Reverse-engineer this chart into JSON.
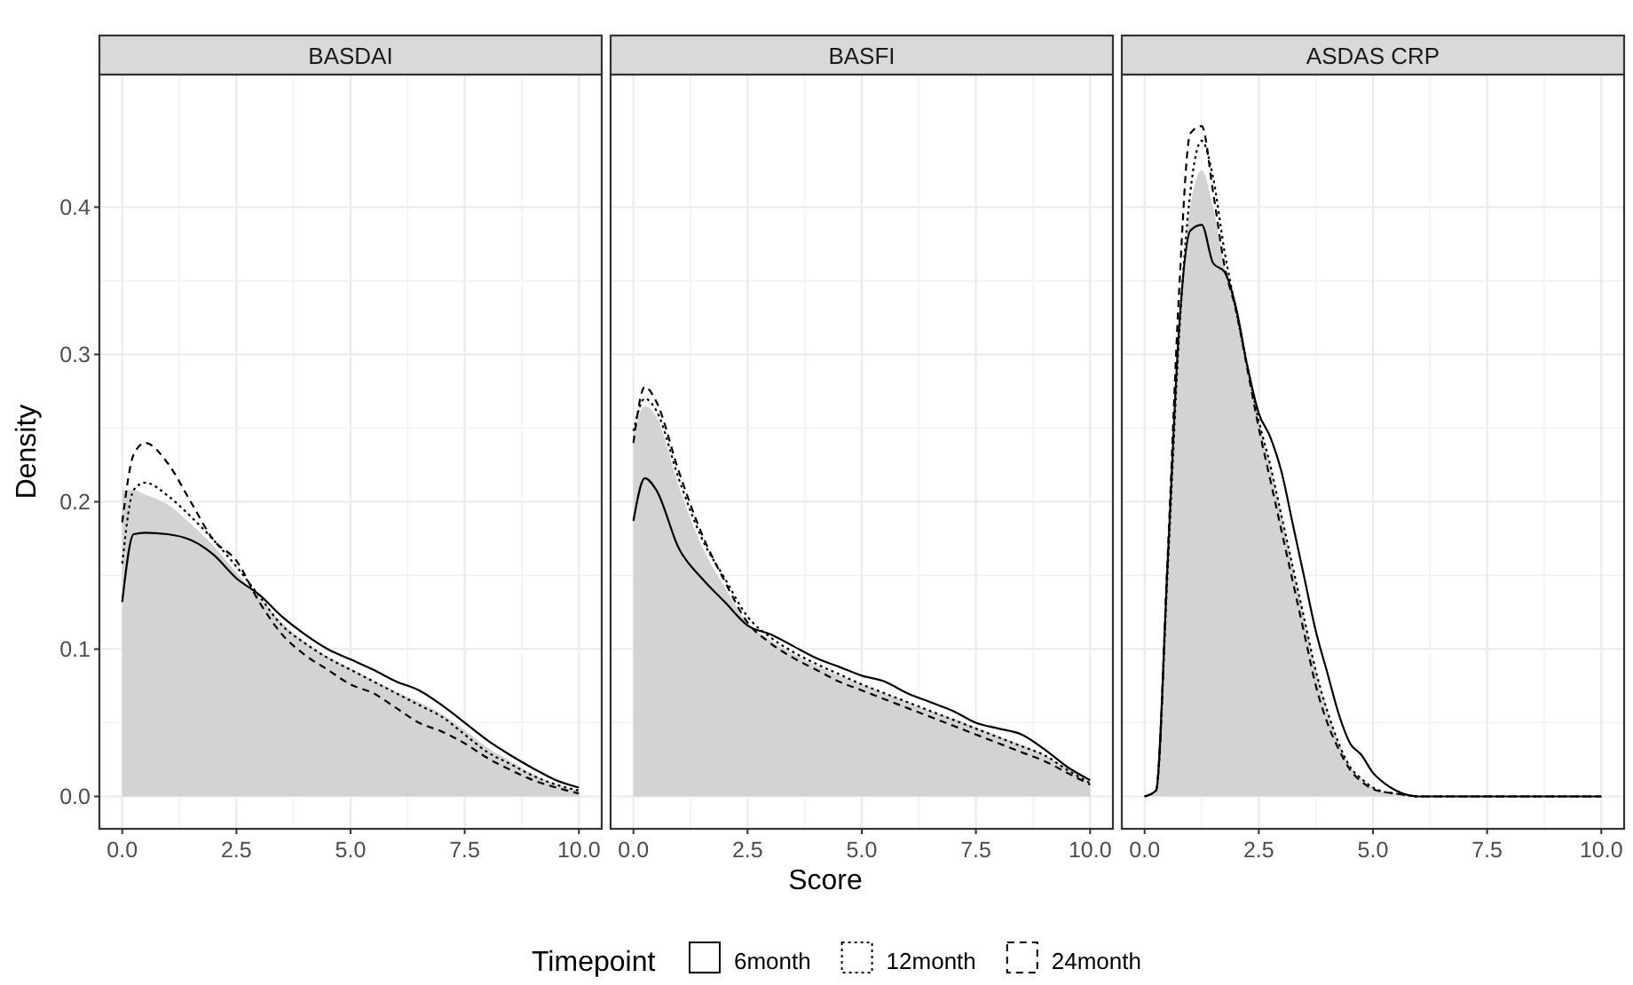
{
  "chart_data": [
    {
      "type": "line",
      "title": "BASDAI",
      "ylabel": "Density",
      "xlim": [
        -0.5,
        10.5
      ],
      "ylim": [
        -0.022,
        0.49
      ],
      "xticks": [
        {
          "value": 0,
          "label": "0.0"
        },
        {
          "value": 2.5,
          "label": "2.5"
        },
        {
          "value": 5,
          "label": "5.0"
        },
        {
          "value": 7.5,
          "label": "7.5"
        },
        {
          "value": 10,
          "label": "10.0"
        }
      ],
      "yticks": [
        {
          "value": 0,
          "label": "0.0"
        },
        {
          "value": 0.1,
          "label": "0.1"
        },
        {
          "value": 0.2,
          "label": "0.2"
        },
        {
          "value": 0.3,
          "label": "0.3"
        },
        {
          "value": 0.4,
          "label": "0.4"
        }
      ],
      "grid": true,
      "x": [
        0,
        0.25,
        0.5,
        1,
        1.5,
        2,
        2.5,
        3,
        3.5,
        4,
        4.5,
        5,
        5.5,
        6,
        6.5,
        7,
        7.5,
        8,
        8.5,
        9,
        9.5,
        10
      ],
      "series": [
        {
          "type": "area",
          "color": "#d3d3d3",
          "values": [
            0.208,
            0.208,
            0.205,
            0.198,
            0.185,
            0.17,
            0.152,
            0.135,
            0.118,
            0.105,
            0.095,
            0.087,
            0.079,
            0.071,
            0.064,
            0.056,
            0.045,
            0.033,
            0.024,
            0.015,
            0.008,
            0.004
          ]
        },
        {
          "color": "#000000",
          "line_style": "solid",
          "values": [
            0.132,
            0.178,
            0.179,
            0.178,
            0.174,
            0.164,
            0.148,
            0.137,
            0.122,
            0.11,
            0.1,
            0.093,
            0.086,
            0.078,
            0.072,
            0.062,
            0.05,
            0.038,
            0.028,
            0.019,
            0.011,
            0.006
          ]
        },
        {
          "color": "#000000",
          "line_style": "dotted",
          "values": [
            0.158,
            0.208,
            0.213,
            0.204,
            0.19,
            0.174,
            0.156,
            0.136,
            0.116,
            0.104,
            0.094,
            0.086,
            0.078,
            0.07,
            0.062,
            0.054,
            0.042,
            0.03,
            0.022,
            0.014,
            0.008,
            0.004
          ]
        },
        {
          "color": "#000000",
          "line_style": "dashed",
          "values": [
            0.186,
            0.232,
            0.24,
            0.226,
            0.2,
            0.174,
            0.16,
            0.132,
            0.11,
            0.096,
            0.086,
            0.076,
            0.07,
            0.06,
            0.05,
            0.044,
            0.036,
            0.026,
            0.018,
            0.011,
            0.006,
            0.002
          ]
        }
      ],
      "tick_labels": true
    },
    {
      "type": "line",
      "title": "BASFI",
      "xlabel": "Score",
      "legend": "bottom",
      "legend_title": "Timepoint",
      "xlim": [
        -0.5,
        10.5
      ],
      "ylim": [
        -0.022,
        0.49
      ],
      "xticks": [
        {
          "value": 0,
          "label": "0.0"
        },
        {
          "value": 2.5,
          "label": "2.5"
        },
        {
          "value": 5,
          "label": "5.0"
        },
        {
          "value": 7.5,
          "label": "7.5"
        },
        {
          "value": 10,
          "label": "10.0"
        }
      ],
      "yticks": [
        {
          "value": 0,
          "label": null
        },
        {
          "value": 0.1,
          "label": null
        },
        {
          "value": 0.2,
          "label": null
        },
        {
          "value": 0.3,
          "label": null
        },
        {
          "value": 0.4,
          "label": null
        }
      ],
      "grid": true,
      "tick_labels": "x",
      "x": [
        0,
        0.25,
        0.5,
        1,
        1.5,
        2,
        2.5,
        3,
        3.5,
        4,
        4.5,
        5,
        5.5,
        6,
        6.5,
        7,
        7.5,
        8,
        8.5,
        9,
        9.5,
        10
      ],
      "series": [
        {
          "type": "area",
          "color": "#d3d3d3",
          "values": [
            0.245,
            0.265,
            0.258,
            0.21,
            0.17,
            0.142,
            0.118,
            0.106,
            0.097,
            0.089,
            0.082,
            0.076,
            0.07,
            0.064,
            0.058,
            0.053,
            0.047,
            0.041,
            0.035,
            0.028,
            0.019,
            0.009
          ]
        },
        {
          "name": "6month",
          "color": "#000000",
          "line_style": "solid",
          "values": [
            0.187,
            0.216,
            0.208,
            0.168,
            0.148,
            0.132,
            0.116,
            0.11,
            0.102,
            0.094,
            0.088,
            0.082,
            0.078,
            0.07,
            0.064,
            0.058,
            0.05,
            0.046,
            0.042,
            0.032,
            0.02,
            0.011
          ]
        },
        {
          "name": "12month",
          "color": "#000000",
          "line_style": "dotted",
          "values": [
            0.248,
            0.27,
            0.262,
            0.215,
            0.175,
            0.148,
            0.122,
            0.108,
            0.098,
            0.09,
            0.083,
            0.076,
            0.07,
            0.064,
            0.058,
            0.052,
            0.046,
            0.04,
            0.034,
            0.028,
            0.018,
            0.009
          ]
        },
        {
          "name": "24month",
          "color": "#000000",
          "line_style": "dashed",
          "values": [
            0.24,
            0.278,
            0.268,
            0.22,
            0.178,
            0.146,
            0.118,
            0.104,
            0.094,
            0.086,
            0.078,
            0.072,
            0.066,
            0.06,
            0.054,
            0.048,
            0.042,
            0.036,
            0.03,
            0.024,
            0.016,
            0.008
          ]
        }
      ]
    },
    {
      "type": "line",
      "title": "ASDAS CRP",
      "xlim": [
        -0.5,
        10.5
      ],
      "ylim": [
        -0.022,
        0.49
      ],
      "xticks": [
        {
          "value": 0,
          "label": "0.0"
        },
        {
          "value": 2.5,
          "label": "2.5"
        },
        {
          "value": 5,
          "label": "5.0"
        },
        {
          "value": 7.5,
          "label": "7.5"
        },
        {
          "value": 10,
          "label": "10.0"
        }
      ],
      "yticks": [
        {
          "value": 0,
          "label": null
        },
        {
          "value": 0.1,
          "label": null
        },
        {
          "value": 0.2,
          "label": null
        },
        {
          "value": 0.3,
          "label": null
        },
        {
          "value": 0.4,
          "label": null
        }
      ],
      "grid": true,
      "tick_labels": "x",
      "x": [
        0,
        0.25,
        0.5,
        0.75,
        1,
        1.25,
        1.5,
        1.75,
        2,
        2.25,
        2.5,
        2.75,
        3,
        3.25,
        3.5,
        3.75,
        4,
        4.25,
        4.5,
        4.75,
        5,
        5.25,
        5.5,
        6,
        7,
        8,
        9,
        10
      ],
      "series": [
        {
          "type": "area",
          "color": "#d3d3d3",
          "values": [
            0,
            0.004,
            0.15,
            0.31,
            0.4,
            0.425,
            0.4,
            0.36,
            0.33,
            0.29,
            0.255,
            0.225,
            0.19,
            0.155,
            0.12,
            0.085,
            0.058,
            0.036,
            0.02,
            0.012,
            0.006,
            0.003,
            0.002,
            0,
            0,
            0,
            0,
            0
          ]
        },
        {
          "color": "#000000",
          "line_style": "solid",
          "values": [
            0,
            0.004,
            0.156,
            0.316,
            0.384,
            0.388,
            0.362,
            0.356,
            0.332,
            0.292,
            0.26,
            0.244,
            0.22,
            0.184,
            0.148,
            0.112,
            0.084,
            0.056,
            0.036,
            0.028,
            0.016,
            0.009,
            0.004,
            0,
            0,
            0,
            0,
            0
          ]
        },
        {
          "color": "#000000",
          "line_style": "dotted",
          "values": [
            0,
            0.004,
            0.15,
            0.31,
            0.41,
            0.445,
            0.42,
            0.37,
            0.33,
            0.292,
            0.255,
            0.225,
            0.19,
            0.155,
            0.12,
            0.085,
            0.058,
            0.036,
            0.02,
            0.012,
            0.006,
            0.003,
            0.002,
            0,
            0,
            0,
            0,
            0
          ]
        },
        {
          "color": "#000000",
          "line_style": "dashed",
          "values": [
            0,
            0.004,
            0.16,
            0.34,
            0.45,
            0.455,
            0.41,
            0.36,
            0.33,
            0.29,
            0.25,
            0.215,
            0.18,
            0.145,
            0.11,
            0.075,
            0.05,
            0.032,
            0.018,
            0.01,
            0.005,
            0.003,
            0.002,
            0,
            0,
            0,
            0,
            0
          ]
        }
      ]
    }
  ]
}
